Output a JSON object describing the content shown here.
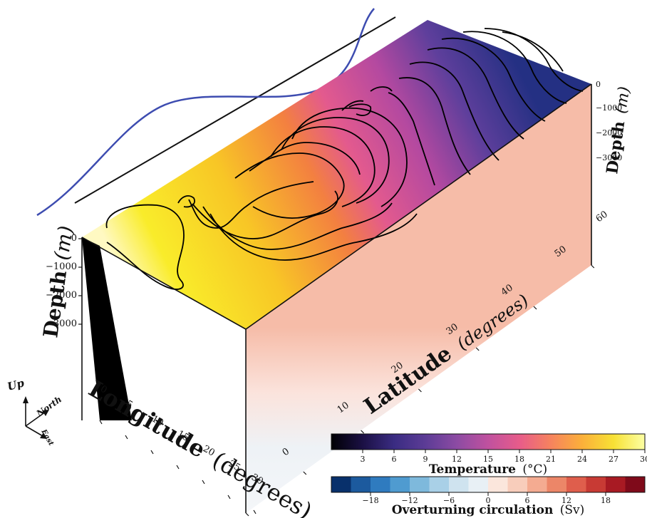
{
  "axes": {
    "depth_left_label": "Depth",
    "depth_left_unit": "(m)",
    "depth_right_label": "Depth",
    "depth_right_unit": "(m)",
    "longitude_label": "Longitude",
    "longitude_unit": "(degrees)",
    "latitude_label": "Latitude",
    "latitude_unit": "(degrees)",
    "depth_left_ticks": [
      "0",
      "−1000",
      "−2000",
      "−3000"
    ],
    "depth_right_ticks": [
      "0",
      "−1000",
      "−2000",
      "−3000"
    ],
    "longitude_ticks": [
      "0",
      "5",
      "10",
      "15",
      "20",
      "25",
      "30"
    ],
    "latitude_ticks": [
      "0",
      "10",
      "20",
      "30",
      "40",
      "50",
      "60"
    ]
  },
  "compass": {
    "up": "Up",
    "north": "North",
    "east": "East"
  },
  "colorbars": {
    "temperature": {
      "label": "Temperature",
      "unit": "(°C)",
      "ticks": [
        "3",
        "6",
        "9",
        "12",
        "15",
        "18",
        "21",
        "24",
        "27",
        "30"
      ],
      "stops": [
        "#000004",
        "#1b1044",
        "#3a2c82",
        "#5c3c96",
        "#8c4ba3",
        "#c0519f",
        "#e75c8a",
        "#f6835e",
        "#fbb03a",
        "#f7e135",
        "#fcffa4"
      ]
    },
    "overturning": {
      "label": "Overturning circulation",
      "unit": "(Sv)",
      "ticks": [
        "−18",
        "−12",
        "−6",
        "0",
        "6",
        "12",
        "18"
      ],
      "colors": [
        "#08306b",
        "#1c5a9e",
        "#2f7bbf",
        "#4f9bd0",
        "#7eb9dc",
        "#a9d0e7",
        "#cfe3ef",
        "#e8f0f5",
        "#fbe6dc",
        "#f8cdbb",
        "#f4ab91",
        "#ec8668",
        "#df5e4c",
        "#c83a34",
        "#a81a23",
        "#7f0a1a"
      ]
    }
  }
}
